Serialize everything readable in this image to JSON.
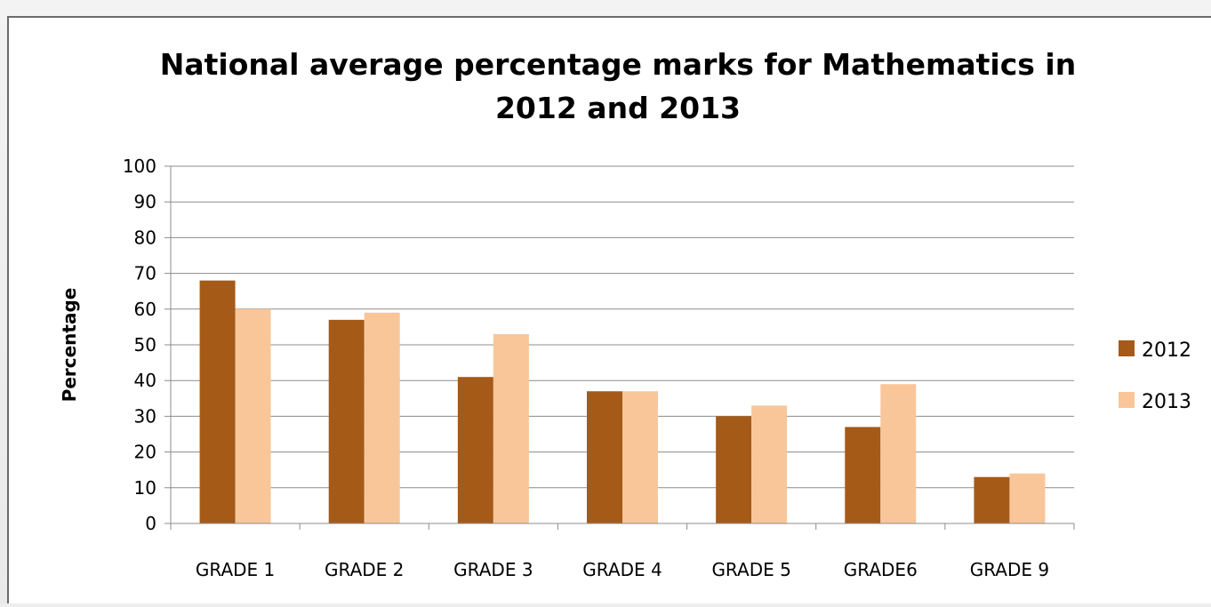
{
  "chart_data": {
    "type": "bar",
    "title": [
      "National average percentage marks for Mathematics in",
      "2012 and 2013"
    ],
    "ylabel": "Percentage",
    "xlabel": "",
    "ylim": [
      0,
      100
    ],
    "yticks": [
      0,
      10,
      20,
      30,
      40,
      50,
      60,
      70,
      80,
      90,
      100
    ],
    "grid": true,
    "legend_position": "right",
    "categories": [
      "GRADE 1",
      "GRADE 2",
      "GRADE 3",
      "GRADE 4",
      "GRADE 5",
      "GRADE6",
      "GRADE 9"
    ],
    "series": [
      {
        "name": "2012",
        "color": "#A65A17",
        "values": [
          68,
          57,
          41,
          37,
          30,
          27,
          13
        ]
      },
      {
        "name": "2013",
        "color": "#F9C69A",
        "values": [
          60,
          59,
          53,
          37,
          33,
          39,
          14
        ]
      }
    ]
  }
}
